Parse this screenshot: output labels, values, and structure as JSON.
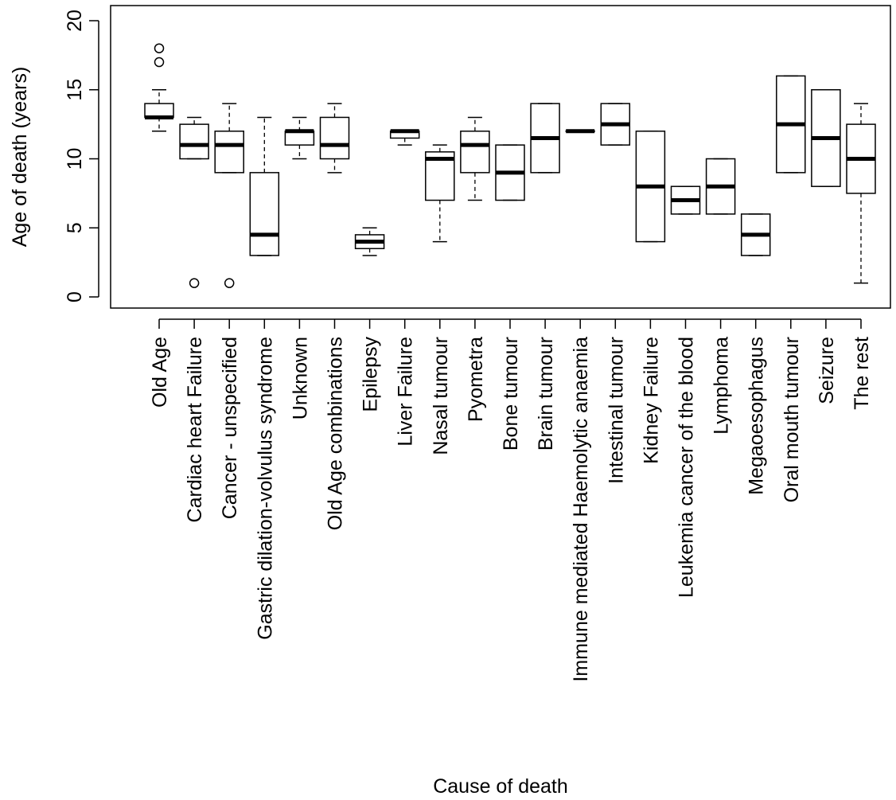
{
  "chart_data": {
    "type": "boxplot",
    "title": "",
    "xlabel": "Cause of death",
    "ylabel": "Age of death (years)",
    "ylim": [
      0,
      20
    ],
    "yticks": [
      0,
      5,
      10,
      15,
      20
    ],
    "grid": false,
    "legend": "none",
    "categories": [
      "Old Age",
      "Cardiac heart Failure",
      "Cancer - unspecified",
      "Gastric dilation-volvulus syndrome",
      "Unknown",
      "Old Age combinations",
      "Epilepsy",
      "Liver Failure",
      "Nasal tumour",
      "Pyometra",
      "Bone tumour",
      "Brain tumour",
      "Immune mediated Haemolytic anaemia",
      "Intestinal tumour",
      "Kidney Failure",
      "Leukemia cancer of the blood",
      "Lymphoma",
      "Megaoesophagus",
      "Oral mouth tumour",
      "Seizure",
      "The rest"
    ],
    "boxes": [
      {
        "whisker_low": 12,
        "q1": 13,
        "median": 13,
        "q3": 14,
        "whisker_high": 15,
        "outliers": [
          17,
          18
        ]
      },
      {
        "whisker_low": 10,
        "q1": 10,
        "median": 11,
        "q3": 12.5,
        "whisker_high": 13,
        "outliers": [
          1
        ]
      },
      {
        "whisker_low": 9,
        "q1": 9,
        "median": 11,
        "q3": 12,
        "whisker_high": 14,
        "outliers": [
          1
        ]
      },
      {
        "whisker_low": 3,
        "q1": 3,
        "median": 4.5,
        "q3": 9,
        "whisker_high": 13,
        "outliers": []
      },
      {
        "whisker_low": 10,
        "q1": 11,
        "median": 12,
        "q3": 12,
        "whisker_high": 13,
        "outliers": []
      },
      {
        "whisker_low": 9,
        "q1": 10,
        "median": 11,
        "q3": 13,
        "whisker_high": 14,
        "outliers": []
      },
      {
        "whisker_low": 3,
        "q1": 3.5,
        "median": 4,
        "q3": 4.5,
        "whisker_high": 5,
        "outliers": []
      },
      {
        "whisker_low": 11,
        "q1": 11.5,
        "median": 12,
        "q3": 12,
        "whisker_high": 12,
        "outliers": []
      },
      {
        "whisker_low": 4,
        "q1": 7,
        "median": 10,
        "q3": 10.5,
        "whisker_high": 11,
        "outliers": []
      },
      {
        "whisker_low": 7,
        "q1": 9,
        "median": 11,
        "q3": 12,
        "whisker_high": 13,
        "outliers": []
      },
      {
        "whisker_low": 7,
        "q1": 7,
        "median": 9,
        "q3": 11,
        "whisker_high": 11,
        "outliers": []
      },
      {
        "whisker_low": 9,
        "q1": 9,
        "median": 11.5,
        "q3": 14,
        "whisker_high": 14,
        "outliers": []
      },
      {
        "whisker_low": 12,
        "q1": 12,
        "median": 12,
        "q3": 12,
        "whisker_high": 12,
        "outliers": []
      },
      {
        "whisker_low": 11,
        "q1": 11,
        "median": 12.5,
        "q3": 14,
        "whisker_high": 14,
        "outliers": []
      },
      {
        "whisker_low": 4,
        "q1": 4,
        "median": 8,
        "q3": 12,
        "whisker_high": 12,
        "outliers": []
      },
      {
        "whisker_low": 6,
        "q1": 6,
        "median": 7,
        "q3": 8,
        "whisker_high": 8,
        "outliers": []
      },
      {
        "whisker_low": 6,
        "q1": 6,
        "median": 8,
        "q3": 10,
        "whisker_high": 10,
        "outliers": []
      },
      {
        "whisker_low": 3,
        "q1": 3,
        "median": 4.5,
        "q3": 6,
        "whisker_high": 6,
        "outliers": []
      },
      {
        "whisker_low": 9,
        "q1": 9,
        "median": 12.5,
        "q3": 16,
        "whisker_high": 16,
        "outliers": []
      },
      {
        "whisker_low": 8,
        "q1": 8,
        "median": 11.5,
        "q3": 15,
        "whisker_high": 15,
        "outliers": []
      },
      {
        "whisker_low": 1,
        "q1": 7.5,
        "median": 10,
        "q3": 12.5,
        "whisker_high": 14,
        "outliers": []
      }
    ]
  }
}
